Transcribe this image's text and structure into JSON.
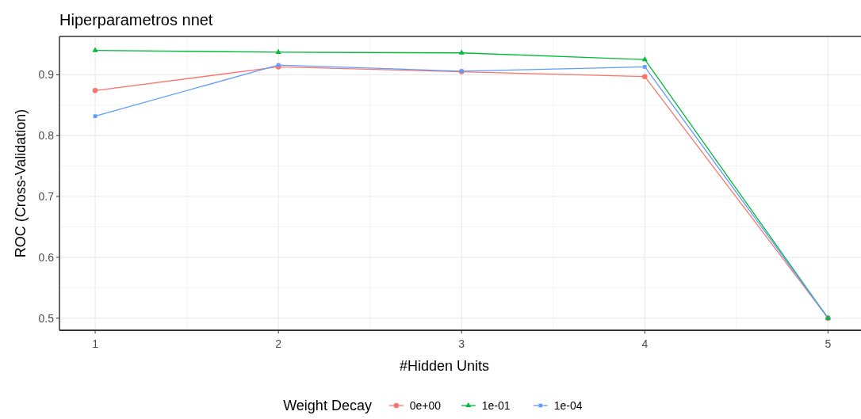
{
  "chart_data": {
    "type": "line",
    "title": "Hiperparametros nnet",
    "xlabel": "#Hidden Units",
    "ylabel": "ROC (Cross-Validation)",
    "legend_title": "Weight Decay",
    "x": [
      1,
      2,
      3,
      4,
      5
    ],
    "series": [
      {
        "name": "0e+00",
        "color": "#f8766d",
        "marker": "circle",
        "values": [
          0.874,
          0.913,
          0.905,
          0.897,
          0.5
        ]
      },
      {
        "name": "1e-01",
        "color": "#00ba38",
        "marker": "triangle",
        "values": [
          0.94,
          0.937,
          0.936,
          0.925,
          0.5
        ]
      },
      {
        "name": "1e-04",
        "color": "#619cff",
        "marker": "square",
        "values": [
          0.832,
          0.916,
          0.906,
          0.913,
          0.5
        ]
      }
    ],
    "xlim": [
      0.805,
      5.18
    ],
    "ylim": [
      0.48,
      0.963
    ],
    "xticks": [
      1,
      2,
      3,
      4,
      5
    ],
    "yticks": [
      0.5,
      0.6,
      0.7,
      0.8,
      0.9
    ],
    "grid": true,
    "legend": "bottom",
    "line_style": "solid"
  }
}
